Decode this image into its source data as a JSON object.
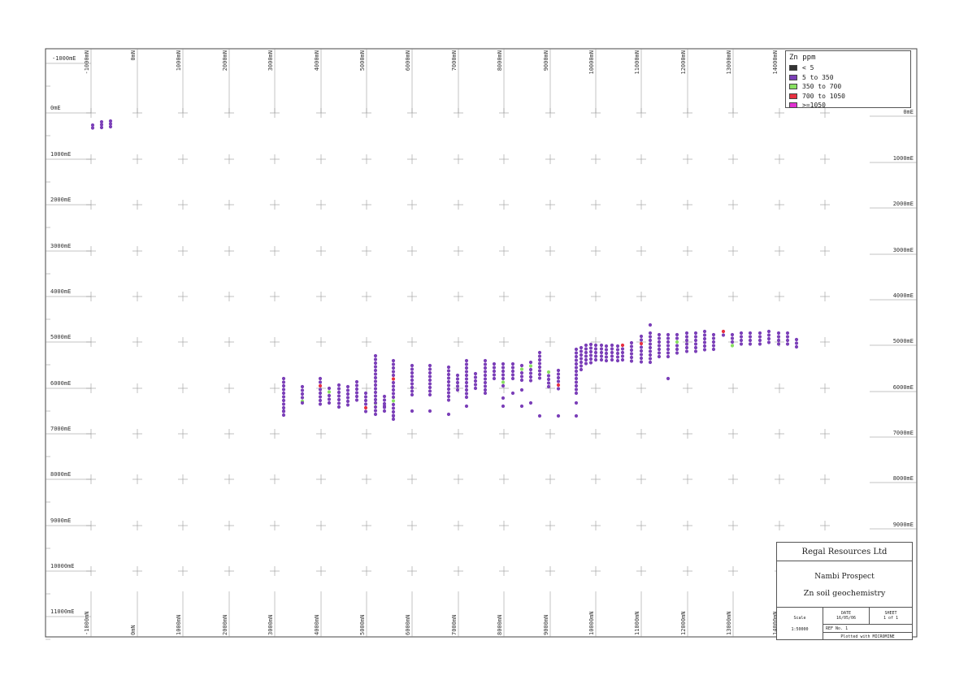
{
  "map": {
    "easting_labels": [
      "-1000mE",
      "0mE",
      "1000mE",
      "2000mE",
      "3000mE",
      "4000mE",
      "5000mE",
      "6000mE",
      "7000mE",
      "8000mE",
      "9000mE",
      "10000mE",
      "11000mE"
    ],
    "northing_labels": [
      "-1000mN",
      "0mN",
      "1000mN",
      "2000mN",
      "3000mN",
      "4000mN",
      "5000mN",
      "6000mN",
      "7000mN",
      "8000mN",
      "9000mN",
      "10000mN",
      "11000mN",
      "12000mN",
      "13000mN",
      "14000mN"
    ],
    "right_easting_labels": [
      "0mE",
      "1000mE",
      "2000mE",
      "3000mE",
      "4000mE",
      "5000mE",
      "6000mE",
      "7000mE",
      "8000mE",
      "9000mE"
    ]
  },
  "legend": {
    "title": "Zn ppm",
    "items": [
      {
        "label": "< 5",
        "color": "#333333"
      },
      {
        "label": "5 to 350",
        "color": "#7b3fb8"
      },
      {
        "label": "350 to 700",
        "color": "#88e060"
      },
      {
        "label": "700 to 1050",
        "color": "#e83040"
      },
      {
        "label": ">=1050",
        "color": "#e030d0"
      }
    ]
  },
  "title_block": {
    "company": "Regal Resources Ltd",
    "project": "Nambi Prospect",
    "subtitle": "Zn soil geochemistry",
    "scale_label": "Scale",
    "scale_value": "1:50000",
    "date_label": "DATE",
    "date_value": "16/05/06",
    "sheet_label": "SHEET",
    "sheet_value": "1 of 1",
    "ref_label": "REF No. 1",
    "plotted": "Plotted with MICROMINE"
  }
}
